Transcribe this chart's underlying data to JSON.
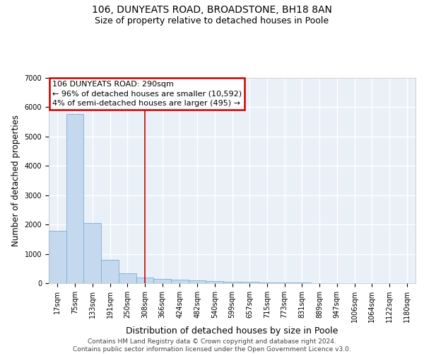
{
  "title": "106, DUNYEATS ROAD, BROADSTONE, BH18 8AN",
  "subtitle": "Size of property relative to detached houses in Poole",
  "xlabel": "Distribution of detached houses by size in Poole",
  "ylabel": "Number of detached properties",
  "bar_color": "#c5d9ee",
  "bar_edge_color": "#7aaed6",
  "background_color": "#eaf0f8",
  "grid_color": "#ffffff",
  "bin_labels": [
    "17sqm",
    "75sqm",
    "133sqm",
    "191sqm",
    "250sqm",
    "308sqm",
    "366sqm",
    "424sqm",
    "482sqm",
    "540sqm",
    "599sqm",
    "657sqm",
    "715sqm",
    "773sqm",
    "831sqm",
    "889sqm",
    "947sqm",
    "1006sqm",
    "1064sqm",
    "1122sqm",
    "1180sqm"
  ],
  "bar_values": [
    1780,
    5780,
    2060,
    800,
    350,
    190,
    140,
    110,
    100,
    80,
    55,
    40,
    30,
    20,
    15,
    10,
    8,
    5,
    5,
    3,
    2
  ],
  "vline_position": 5.0,
  "vline_color": "#cc0000",
  "annotation_line1": "106 DUNYEATS ROAD: 290sqm",
  "annotation_line2": "← 96% of detached houses are smaller (10,592)",
  "annotation_line3": "4% of semi-detached houses are larger (495) →",
  "annotation_box_color": "#cc0000",
  "ylim": [
    0,
    7000
  ],
  "yticks": [
    0,
    1000,
    2000,
    3000,
    4000,
    5000,
    6000,
    7000
  ],
  "footer_text": "Contains HM Land Registry data © Crown copyright and database right 2024.\nContains public sector information licensed under the Open Government Licence v3.0.",
  "title_fontsize": 10,
  "subtitle_fontsize": 9,
  "tick_fontsize": 7,
  "ylabel_fontsize": 8.5,
  "xlabel_fontsize": 9,
  "annotation_fontsize": 8,
  "footer_fontsize": 6.5
}
